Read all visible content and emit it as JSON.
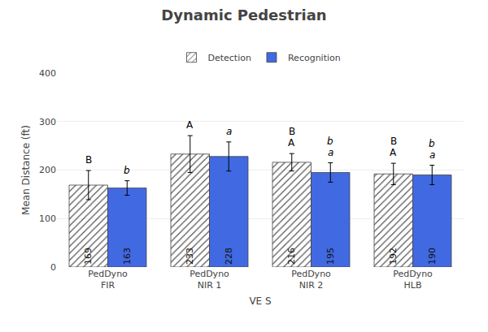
{
  "chart_data": {
    "type": "bar",
    "title": "Dynamic Pedestrian",
    "xlabel": "VE S",
    "ylabel": "Mean Distance (ft)",
    "categories": [
      "PedDyno\nFIR",
      "PedDyno\nNIR 1",
      "PedDyno\nNIR 2",
      "PedDyno\nHLB"
    ],
    "series": [
      {
        "name": "Detection",
        "color": "#c8c8c8",
        "values": [
          169,
          233,
          216,
          192
        ],
        "errors": [
          30,
          38,
          18,
          22
        ],
        "annotations": [
          [
            "B"
          ],
          [
            "A"
          ],
          [
            "A",
            "B"
          ],
          [
            "A",
            "B"
          ]
        ]
      },
      {
        "name": "Recognition",
        "color": "#4169e1",
        "values": [
          163,
          228,
          195,
          190
        ],
        "errors": [
          15,
          30,
          20,
          20
        ],
        "annotations": [
          [
            "b"
          ],
          [
            "a"
          ],
          [
            "a",
            "b"
          ],
          [
            "a",
            "b"
          ]
        ]
      }
    ],
    "ylim": [
      0,
      400
    ],
    "yticks": [
      0,
      100,
      200,
      300,
      400
    ],
    "grid": true,
    "data_labels": true
  }
}
